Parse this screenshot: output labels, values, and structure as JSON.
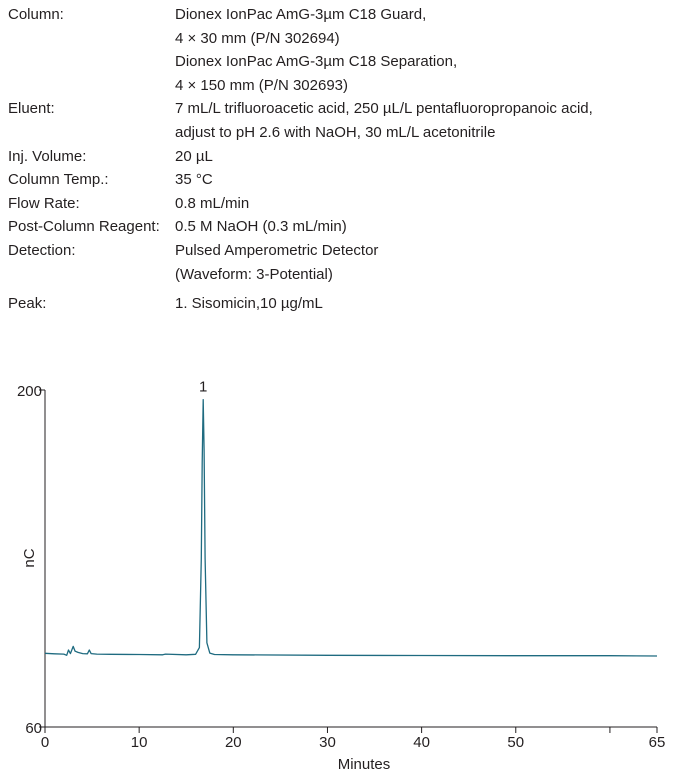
{
  "conditions": [
    {
      "label": "Column:",
      "values": [
        "Dionex IonPac AmG-3µm C18 Guard,",
        "4 × 30 mm (P/N 302694)",
        "Dionex IonPac AmG-3µm C18 Separation,",
        "4 × 150 mm (P/N 302693)"
      ]
    },
    {
      "label": "Eluent:",
      "values": [
        "7 mL/L trifluoroacetic acid, 250 µL/L pentafluoropropanoic acid,",
        "adjust to pH 2.6 with NaOH, 30 mL/L acetonitrile"
      ]
    },
    {
      "label": "Inj. Volume:",
      "values": [
        "20 µL"
      ]
    },
    {
      "label": "Column Temp.:",
      "values": [
        "35 °C"
      ]
    },
    {
      "label": "Flow Rate:",
      "values": [
        "0.8 mL/min"
      ]
    },
    {
      "label": "Post-Column Reagent:",
      "values": [
        "0.5 M NaOH (0.3 mL/min)"
      ]
    },
    {
      "label": "Detection:",
      "values": [
        "Pulsed Amperometric Detector",
        "(Waveform: 3-Potential)"
      ]
    },
    {
      "label": "Peak:",
      "values": [
        "1. Sisomicin,10 µg/mL"
      ]
    }
  ],
  "chart_data": {
    "type": "line",
    "title": "",
    "xlabel": "Minutes",
    "ylabel": "nC",
    "xlim": [
      0,
      65
    ],
    "ylim": [
      60,
      200
    ],
    "x_ticks": [
      "0",
      "10",
      "20",
      "30",
      "40",
      "50",
      "65"
    ],
    "y_ticks": [
      "200",
      "60"
    ],
    "grid": false,
    "line_color": "#1f6b80",
    "peaks": [
      {
        "label": "1",
        "name": "Sisomicin",
        "retention_time": 16.8,
        "height": 196
      }
    ],
    "series": [
      {
        "x": [
          0.0,
          1.0,
          2.0,
          2.3,
          2.5,
          2.7,
          3.0,
          3.2,
          3.5,
          4.0,
          4.5,
          4.7,
          4.9,
          5.5,
          7.0,
          10.0,
          12.5,
          12.8,
          15.0,
          16.0,
          16.4,
          16.6,
          16.7,
          16.8,
          16.9,
          17.0,
          17.2,
          17.5,
          18.0,
          20.0,
          30.0,
          40.0,
          50.0,
          60.0,
          65.0
        ],
        "y": [
          90.6,
          90.4,
          90.3,
          89.8,
          92.0,
          90.5,
          93.5,
          91.5,
          91.0,
          90.5,
          90.4,
          92.0,
          90.5,
          90.3,
          90.2,
          90.1,
          90.0,
          90.3,
          90.0,
          90.2,
          93.0,
          130.0,
          170.0,
          196.0,
          175.0,
          130.0,
          95.0,
          90.7,
          90.1,
          90.0,
          89.8,
          89.7,
          89.6,
          89.6,
          89.5
        ]
      }
    ]
  }
}
